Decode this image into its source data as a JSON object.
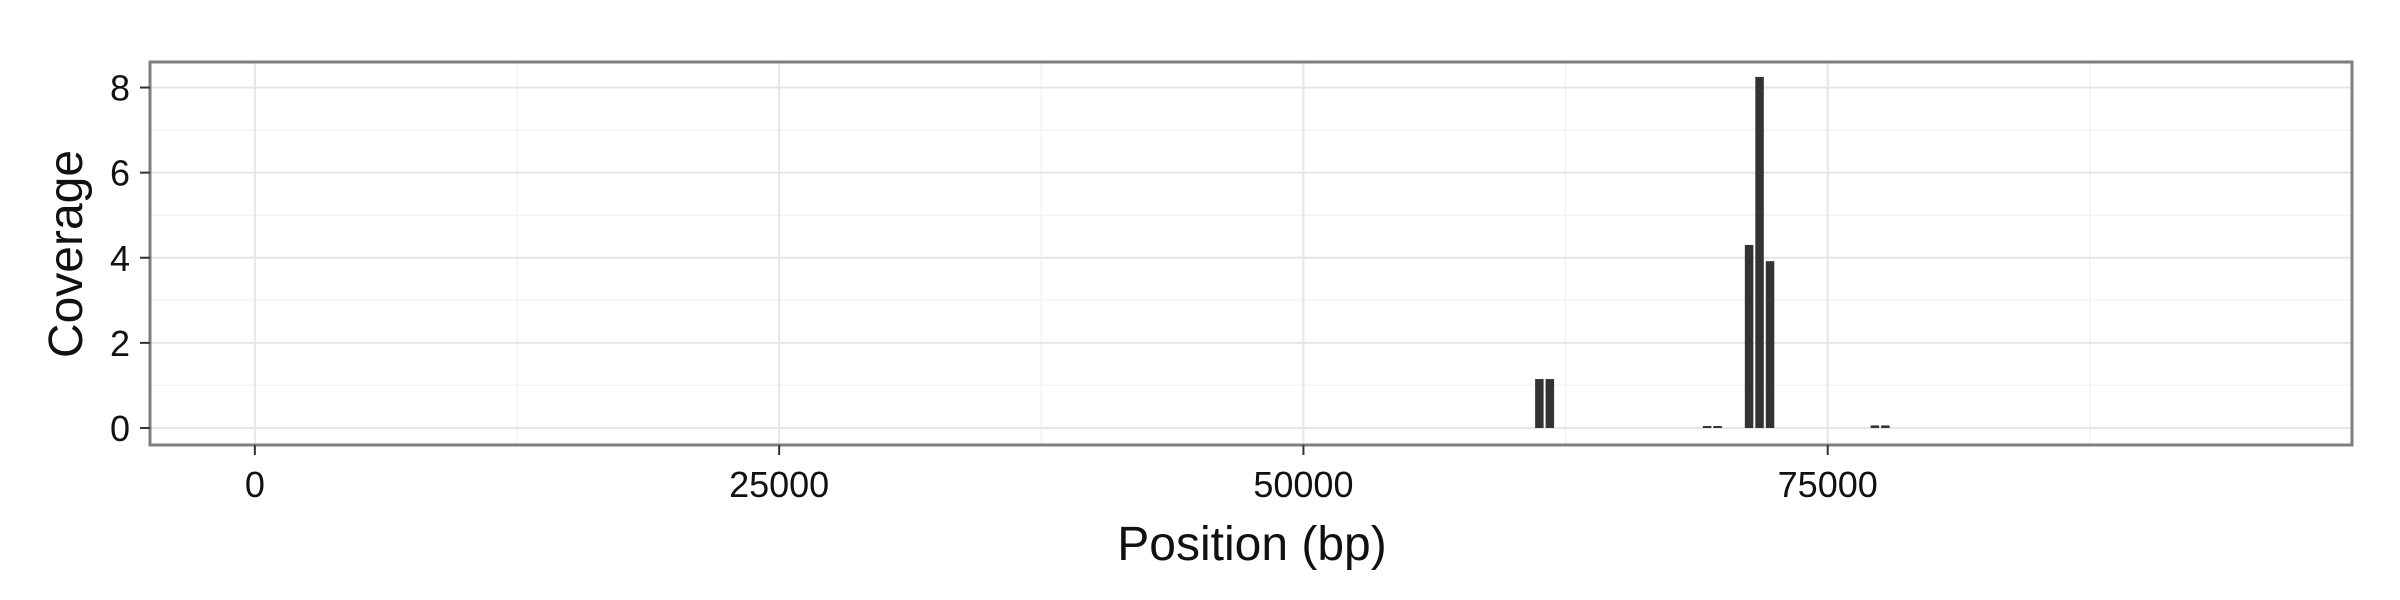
{
  "chart_data": {
    "type": "bar",
    "xlabel": "Position (bp)",
    "ylabel": "Coverage",
    "xlim": [
      -5000,
      100000
    ],
    "ylim": [
      -0.4,
      8.6
    ],
    "x_ticks": [
      {
        "value": 0,
        "label": "0"
      },
      {
        "value": 25000,
        "label": "25000"
      },
      {
        "value": 50000,
        "label": "50000"
      },
      {
        "value": 75000,
        "label": "75000"
      }
    ],
    "y_ticks": [
      {
        "value": 0,
        "label": "0"
      },
      {
        "value": 2,
        "label": "2"
      },
      {
        "value": 4,
        "label": "4"
      },
      {
        "value": 6,
        "label": "6"
      },
      {
        "value": 8,
        "label": "8"
      }
    ],
    "bin_width": 500,
    "bars": [
      {
        "x": 61250,
        "y": 1.15
      },
      {
        "x": 61750,
        "y": 1.15
      },
      {
        "x": 69250,
        "y": 0.04
      },
      {
        "x": 69750,
        "y": 0.04
      },
      {
        "x": 71250,
        "y": 4.3
      },
      {
        "x": 71750,
        "y": 8.25
      },
      {
        "x": 72250,
        "y": 3.92
      },
      {
        "x": 77250,
        "y": 0.06
      },
      {
        "x": 77750,
        "y": 0.06
      }
    ],
    "grid": true,
    "bar_color": "#333333",
    "panel_border_color": "#7f7f7f",
    "grid_major_color": "#e6e6e6",
    "grid_minor_color": "#f3f3f3"
  }
}
